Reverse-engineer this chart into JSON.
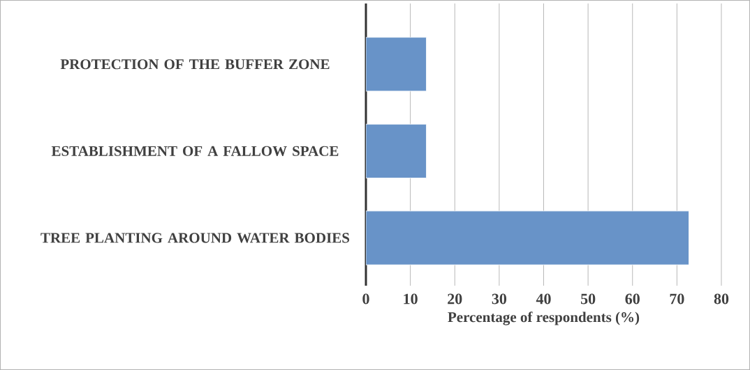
{
  "chart_data": {
    "type": "bar",
    "orientation": "horizontal",
    "categories": [
      "PROTECTION OF THE BUFFER ZONE",
      "ESTABLISHMENT OF A FALLOW SPACE",
      "TREE PLANTING AROUND WATER BODIES"
    ],
    "values": [
      13.6,
      13.6,
      72.7
    ],
    "color": "#6893c8",
    "xlabel": "Percentage of respondents (%)",
    "xlim": [
      0,
      80
    ],
    "xticks": [
      0,
      10,
      20,
      30,
      40,
      50,
      60,
      70,
      80
    ],
    "grid": "x"
  }
}
